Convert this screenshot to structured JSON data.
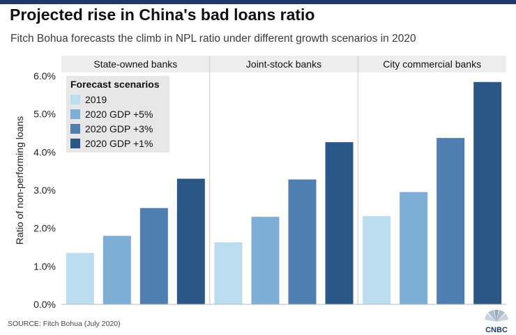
{
  "header": {
    "title": "Projected rise in China's bad loans ratio",
    "subtitle": "Fitch Bohua forecasts the climb in NPL ratio under different growth scenarios in 2020"
  },
  "footer": {
    "source": "SOURCE: Fitch Bohua (July 2020)",
    "logo_text": "CNBC"
  },
  "chart_data": {
    "type": "bar",
    "ylabel": "Ratio of non-performing loans",
    "ylim": [
      0,
      6.0
    ],
    "yticks": [
      "0.0%",
      "1.0%",
      "2.0%",
      "3.0%",
      "4.0%",
      "5.0%",
      "6.0%"
    ],
    "grid": false,
    "legend_title": "Forecast scenarios",
    "legend_position": "top-left",
    "categories": [
      "State-owned banks",
      "Joint-stock banks",
      "City commercial banks"
    ],
    "series": [
      {
        "name": "2019",
        "color": "#bcdcef",
        "values": [
          1.35,
          1.63,
          2.32
        ]
      },
      {
        "name": "2020 GDP +5%",
        "color": "#7eadd6",
        "values": [
          1.8,
          2.3,
          2.95
        ]
      },
      {
        "name": "2020 GDP +3%",
        "color": "#4f7fb0",
        "values": [
          2.53,
          3.28,
          4.37
        ]
      },
      {
        "name": "2020 GDP +1%",
        "color": "#2b5786",
        "values": [
          3.3,
          4.26,
          5.84
        ]
      }
    ]
  }
}
